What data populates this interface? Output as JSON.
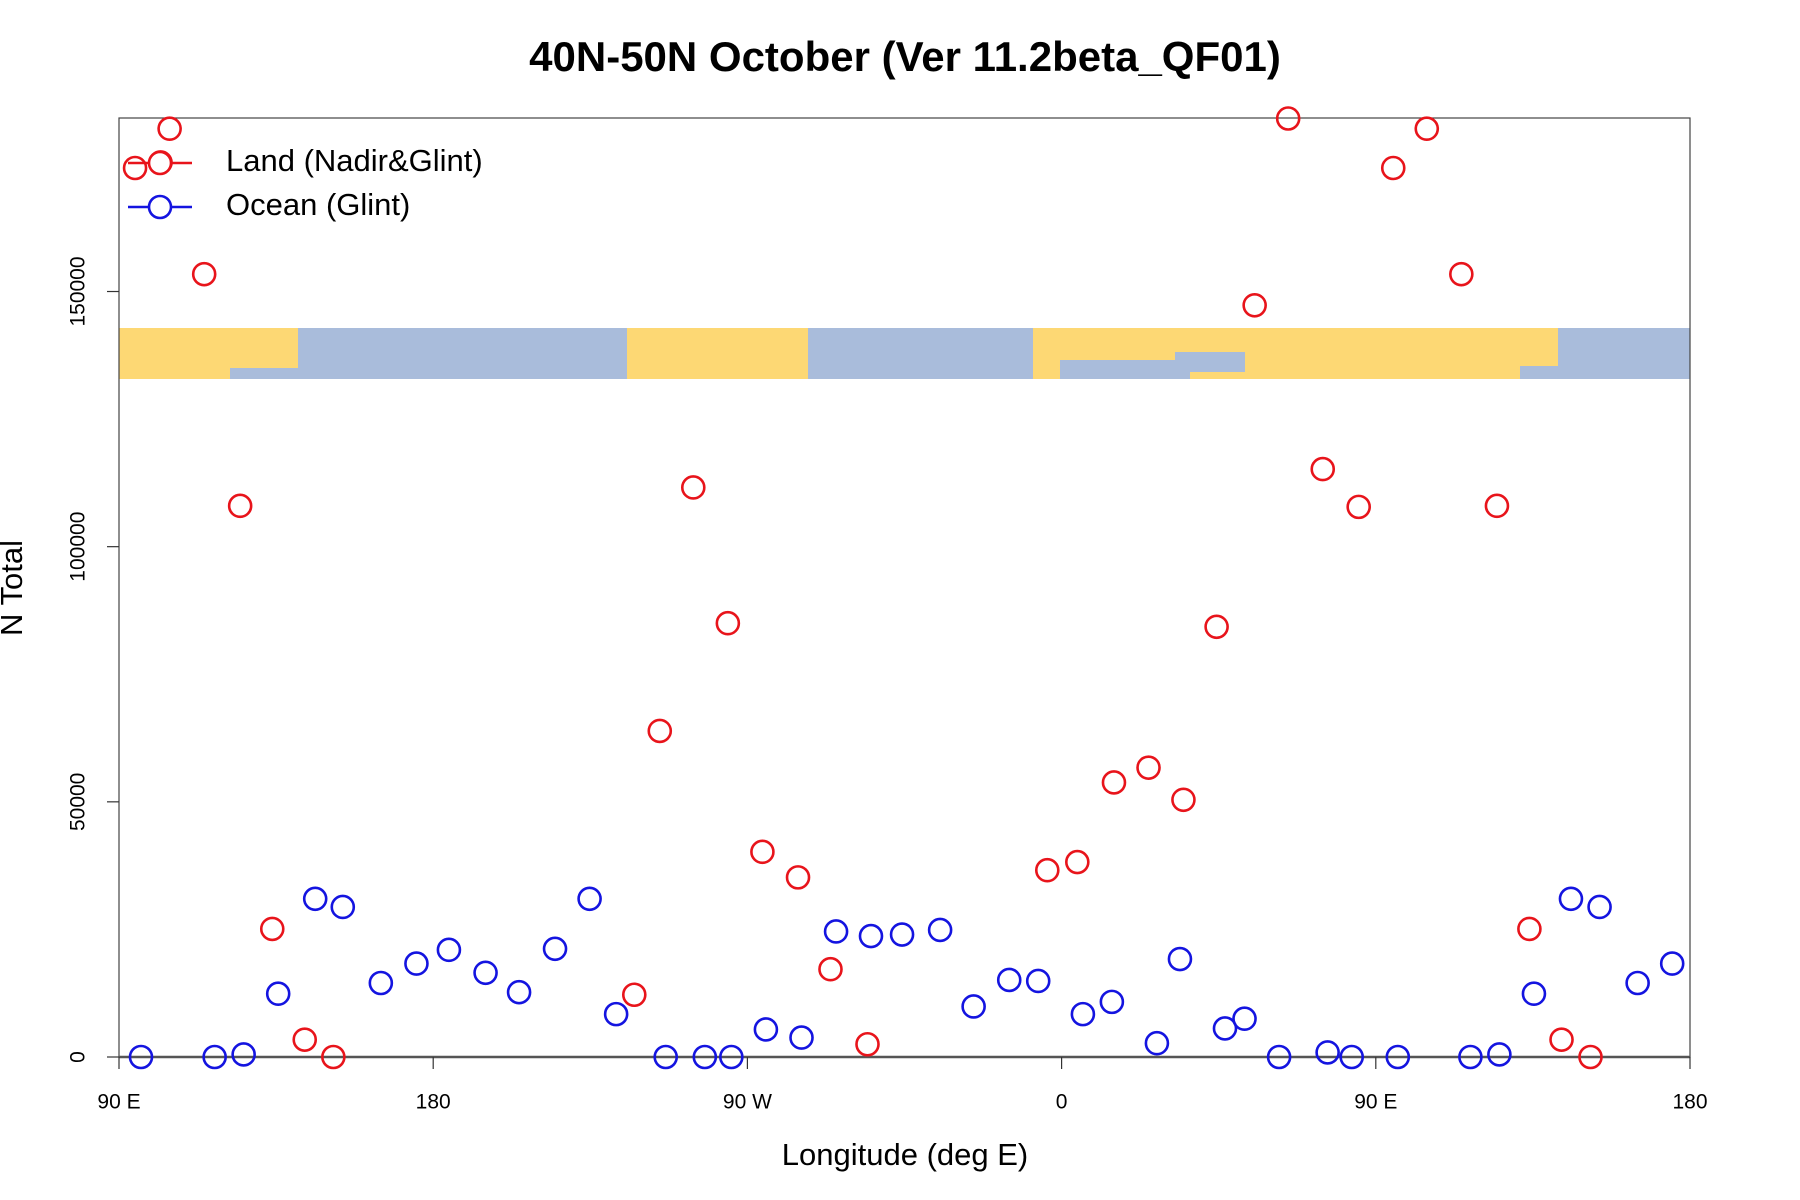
{
  "chart_data": {
    "type": "scatter",
    "title": "40N-50N October (Ver 11.2beta_QF01)",
    "x_label": "Longitude (deg E)",
    "y_label": "N Total",
    "xlim": [
      90,
      540
    ],
    "ylim": [
      0,
      184000
    ],
    "xticks": [
      {
        "value": 90,
        "label": "90 E"
      },
      180,
      {
        "value": 270,
        "label": "90 W"
      },
      {
        "value": 360,
        "label": "0"
      },
      {
        "value": 450,
        "label": "90 E"
      },
      {
        "value": 540,
        "label": "180"
      }
    ],
    "yticks": [
      0,
      50000,
      100000,
      150000
    ],
    "legend": "top-left",
    "series": [
      {
        "name": "Land (Nadir&Glint)",
        "color": "#e8141b",
        "x": [
          94.6,
          101.9,
          104.5,
          114.4,
          124.7,
          133.9,
          143.2,
          151.4,
          237.6,
          244.9,
          254.5,
          264.4,
          274.3,
          284.5,
          293.8,
          304.4,
          355.9,
          364.5,
          375.0,
          384.9,
          394.9,
          404.4,
          415.3,
          424.9,
          434.8,
          445.1,
          455.0,
          464.6,
          474.5,
          484.7,
          494.0,
          503.2,
          511.5
        ],
        "values": [
          174200,
          175300,
          181900,
          153400,
          108000,
          25100,
          3400,
          0,
          12200,
          63900,
          111600,
          85000,
          40200,
          35200,
          17200,
          2500,
          36600,
          38200,
          53800,
          56700,
          50400,
          84300,
          147300,
          183900,
          115200,
          107800,
          174200,
          181900,
          153400,
          108000,
          25100,
          3400,
          0
        ]
      },
      {
        "name": "Ocean (Glint)",
        "color": "#1414e0",
        "x": [
          96.3,
          117.4,
          125.7,
          135.6,
          146.2,
          154.1,
          165.0,
          175.2,
          184.5,
          195.0,
          204.6,
          214.9,
          224.8,
          232.4,
          246.6,
          257.8,
          265.4,
          275.3,
          285.5,
          295.4,
          305.4,
          314.3,
          325.2,
          334.8,
          345.0,
          353.3,
          366.1,
          374.4,
          387.3,
          393.9,
          406.8,
          412.4,
          422.3,
          436.2,
          443.1,
          456.3,
          477.1,
          485.4,
          495.3,
          505.9,
          514.1,
          525.0,
          534.9
        ],
        "values": [
          0,
          0,
          500,
          12400,
          31000,
          29400,
          14500,
          18300,
          21000,
          16500,
          12700,
          21200,
          31000,
          8400,
          0,
          0,
          0,
          5400,
          3800,
          24600,
          23700,
          24000,
          24900,
          9900,
          15100,
          14900,
          8400,
          10800,
          2700,
          19200,
          5600,
          7500,
          0,
          900,
          0,
          0,
          0,
          500,
          12400,
          31000,
          29400,
          14500,
          18300
        ]
      }
    ]
  }
}
